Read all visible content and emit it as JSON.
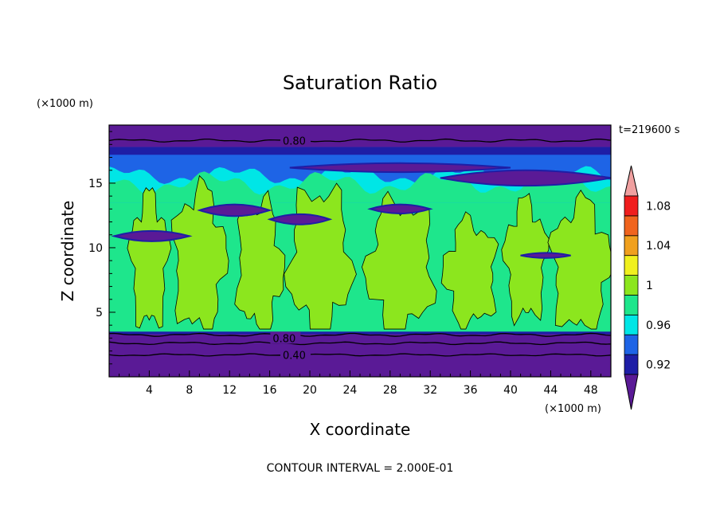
{
  "chart_data": {
    "type": "heatmap",
    "title": "Saturation Ratio",
    "time_label": "t=219600 s",
    "xlabel": "X coordinate",
    "ylabel": "Z coordinate",
    "x_unit": "(×1000 m)",
    "y_unit": "(×1000 m)",
    "xlim": [
      0,
      50
    ],
    "ylim": [
      0,
      19.5
    ],
    "x_ticks": [
      4,
      8,
      12,
      16,
      20,
      24,
      28,
      32,
      36,
      40,
      44,
      48
    ],
    "y_ticks": [
      5,
      10,
      15
    ],
    "contour_interval_text": "CONTOUR INTERVAL = 2.000E-01",
    "contour_labels": [
      {
        "text": "0.80",
        "x": 17.3,
        "z": 18.3
      },
      {
        "text": "0.80",
        "x": 16.3,
        "z": 3.0
      },
      {
        "text": "0.40",
        "x": 17.3,
        "z": 1.7
      }
    ],
    "colorbar": {
      "levels": [
        0.92,
        0.94,
        0.96,
        0.98,
        1.0,
        1.02,
        1.04,
        1.06,
        1.08,
        1.1
      ],
      "tick_labels": [
        "0.92",
        "0.96",
        "1",
        "1.04",
        "1.08"
      ],
      "colors": [
        "#5a1a96",
        "#1e1ea6",
        "#1e64e6",
        "#00e6e6",
        "#1ee68c",
        "#8ce61e",
        "#f0f01e",
        "#f0a01e",
        "#f0641e",
        "#f01e1e",
        "#f0a0a0"
      ]
    },
    "field_regions": {
      "dry_upper_band_z": [
        17.8,
        19.5
      ],
      "ice_layer_z": [
        13.5,
        17.8
      ],
      "cloud_layer_z": [
        3.5,
        15.5
      ],
      "dry_lower_band_z": [
        0,
        3.3
      ],
      "saturated_patches": [
        {
          "x": 4,
          "z": 9,
          "rx": 1.8,
          "rz": 5
        },
        {
          "x": 9,
          "z": 9,
          "rx": 2.5,
          "rz": 5.5
        },
        {
          "x": 15,
          "z": 8.5,
          "rx": 2.2,
          "rz": 5
        },
        {
          "x": 21,
          "z": 9,
          "rx": 3,
          "rz": 5.5
        },
        {
          "x": 29,
          "z": 8.5,
          "rx": 3.2,
          "rz": 5
        },
        {
          "x": 36,
          "z": 8,
          "rx": 2.5,
          "rz": 4
        },
        {
          "x": 41.5,
          "z": 9,
          "rx": 2,
          "rz": 4.5
        },
        {
          "x": 47,
          "z": 8.5,
          "rx": 2.8,
          "rz": 5
        }
      ]
    }
  }
}
